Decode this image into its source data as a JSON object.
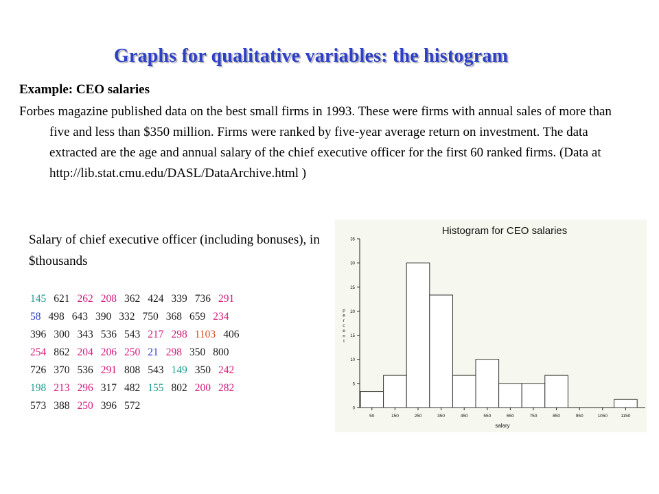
{
  "title": "Graphs for qualitative variables: the histogram",
  "example_heading": "Example: CEO salaries",
  "example_text": "Forbes magazine published data on the best small firms in 1993. These were firms with annual sales of more than five and less than $350 million. Firms were ranked by five-year average return on investment. The data extracted are the age and annual salary of the chief executive officer for the first 60 ranked firms. (Data at http://lib.stat.cmu.edu/DASL/DataArchive.html )",
  "salary_heading": "Salary of chief executive officer (including bonuses), in $thousands",
  "colors": {
    "teal": "#1a9c8f",
    "magenta": "#d3187a",
    "blue": "#2a3ac8",
    "orange": "#d24e1e",
    "black": "#1a1a1a",
    "title_blue": "#2c3fc8"
  },
  "salary_rows": [
    [
      {
        "v": "145",
        "c": "teal"
      },
      {
        "v": "621",
        "c": "black"
      },
      {
        "v": "262",
        "c": "mag"
      },
      {
        "v": "208",
        "c": "mag"
      },
      {
        "v": "362",
        "c": "black"
      },
      {
        "v": "424",
        "c": "black"
      },
      {
        "v": "339",
        "c": "black"
      },
      {
        "v": "736",
        "c": "black"
      },
      {
        "v": "291",
        "c": "mag"
      }
    ],
    [
      {
        "v": "58",
        "c": "blue"
      },
      {
        "v": "498",
        "c": "black"
      },
      {
        "v": "643",
        "c": "black"
      },
      {
        "v": "390",
        "c": "black"
      },
      {
        "v": "332",
        "c": "black"
      },
      {
        "v": "750",
        "c": "black"
      },
      {
        "v": "368",
        "c": "black"
      },
      {
        "v": "659",
        "c": "black"
      },
      {
        "v": "234",
        "c": "mag"
      }
    ],
    [
      {
        "v": "396",
        "c": "black"
      },
      {
        "v": "300",
        "c": "black"
      },
      {
        "v": "343",
        "c": "black"
      },
      {
        "v": "536",
        "c": "black"
      },
      {
        "v": "543",
        "c": "black"
      },
      {
        "v": "217",
        "c": "mag"
      },
      {
        "v": "298",
        "c": "mag"
      },
      {
        "v": "1103",
        "c": "orange"
      },
      {
        "v": "406",
        "c": "black"
      }
    ],
    [
      {
        "v": "254",
        "c": "mag"
      },
      {
        "v": "862",
        "c": "black"
      },
      {
        "v": "204",
        "c": "mag"
      },
      {
        "v": "206",
        "c": "mag"
      },
      {
        "v": "250",
        "c": "mag"
      },
      {
        "v": "21",
        "c": "blue"
      },
      {
        "v": "298",
        "c": "mag"
      },
      {
        "v": "350",
        "c": "black"
      },
      {
        "v": "800",
        "c": "black"
      }
    ],
    [
      {
        "v": "726",
        "c": "black"
      },
      {
        "v": "370",
        "c": "black"
      },
      {
        "v": "536",
        "c": "black"
      },
      {
        "v": "291",
        "c": "mag"
      },
      {
        "v": "808",
        "c": "black"
      },
      {
        "v": "543",
        "c": "black"
      },
      {
        "v": "149",
        "c": "teal"
      },
      {
        "v": "350",
        "c": "black"
      },
      {
        "v": "242",
        "c": "mag"
      }
    ],
    [
      {
        "v": "198",
        "c": "teal"
      },
      {
        "v": "213",
        "c": "mag"
      },
      {
        "v": "296",
        "c": "mag"
      },
      {
        "v": "317",
        "c": "black"
      },
      {
        "v": "482",
        "c": "black"
      },
      {
        "v": "155",
        "c": "teal"
      },
      {
        "v": "802",
        "c": "black"
      },
      {
        "v": "200",
        "c": "mag"
      },
      {
        "v": "282",
        "c": "mag"
      }
    ],
    [
      {
        "v": "573",
        "c": "black"
      },
      {
        "v": "388",
        "c": "black"
      },
      {
        "v": "250",
        "c": "mag"
      },
      {
        "v": "396",
        "c": "black"
      },
      {
        "v": "572",
        "c": "black"
      }
    ]
  ],
  "chart_data": {
    "type": "bar",
    "title": "Histogram for CEO salaries",
    "xlabel": "salary",
    "ylabel": "percent",
    "categories": [
      "50",
      "150",
      "250",
      "350",
      "450",
      "550",
      "650",
      "750",
      "850",
      "950",
      "1050",
      "1150"
    ],
    "values": [
      3.33,
      6.67,
      30.0,
      23.33,
      6.67,
      10.0,
      5.0,
      5.0,
      6.67,
      0,
      0,
      1.67
    ],
    "ylim": [
      0,
      35
    ],
    "yticks": [
      "0",
      "5",
      "10",
      "15",
      "20",
      "25",
      "30",
      "35"
    ],
    "grid": false
  }
}
